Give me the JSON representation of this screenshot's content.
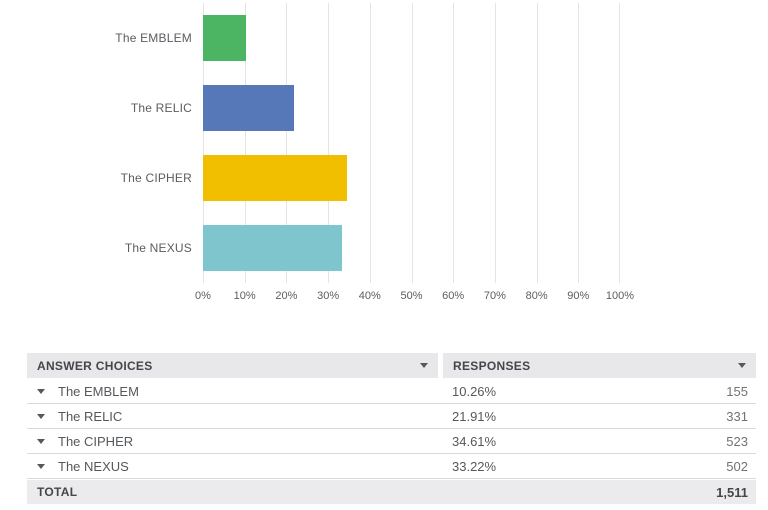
{
  "chart_data": {
    "type": "bar",
    "orientation": "horizontal",
    "title": "",
    "xlabel": "",
    "ylabel": "",
    "categories": [
      "The EMBLEM",
      "The RELIC",
      "The CIPHER",
      "The NEXUS"
    ],
    "values": [
      10.26,
      21.91,
      34.61,
      33.22
    ],
    "bar_colors": [
      "#4CB563",
      "#5678B9",
      "#F1BF00",
      "#7EC5CD"
    ],
    "xlim": [
      0,
      100
    ],
    "x_ticks": [
      "0%",
      "10%",
      "20%",
      "30%",
      "40%",
      "50%",
      "60%",
      "70%",
      "80%",
      "90%",
      "100%"
    ],
    "grid": true,
    "legend": "none"
  },
  "table": {
    "columns": [
      {
        "label": "ANSWER CHOICES",
        "sort_icon": "caret-down-icon"
      },
      {
        "label": "RESPONSES",
        "sort_icon": "caret-down-icon"
      }
    ],
    "rows": [
      {
        "choice": "The EMBLEM",
        "percent": "10.26%",
        "count": "155"
      },
      {
        "choice": "The RELIC",
        "percent": "21.91%",
        "count": "331"
      },
      {
        "choice": "The CIPHER",
        "percent": "34.61%",
        "count": "523"
      },
      {
        "choice": "The NEXUS",
        "percent": "33.22%",
        "count": "502"
      }
    ],
    "total": {
      "label": "TOTAL",
      "count": "1,511"
    }
  }
}
